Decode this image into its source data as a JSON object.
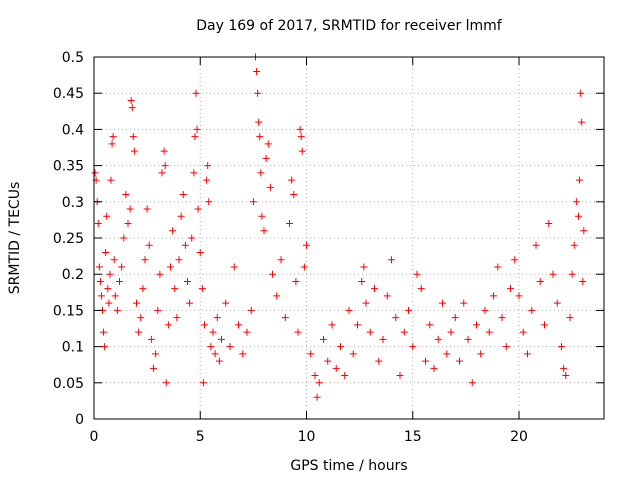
{
  "chart_data": {
    "type": "scatter",
    "title": "Day 169 of 2017, SRMTID for receiver lmmf",
    "xlabel": "GPS time / hours",
    "ylabel": "SRMTID / TECUs",
    "xlim": [
      0,
      24
    ],
    "ylim": [
      0,
      0.5
    ],
    "x_ticks": [
      0,
      5,
      10,
      15,
      20
    ],
    "x_tick_labels": [
      "0",
      "5",
      "10",
      "15",
      "20"
    ],
    "y_ticks": [
      0,
      0.05,
      0.1,
      0.15,
      0.2,
      0.25,
      0.3,
      0.35,
      0.4,
      0.45,
      0.5
    ],
    "y_tick_labels": [
      "0",
      "0.05",
      "0.1",
      "0.15",
      "0.2",
      "0.25",
      "0.3",
      "0.35",
      "0.4",
      "0.45",
      "0.5"
    ],
    "grid": true,
    "marker": "+",
    "series": [
      {
        "name": "SRMTID",
        "color": "#ff0000",
        "points": [
          [
            0.05,
            0.34
          ],
          [
            0.1,
            0.33
          ],
          [
            0.15,
            0.3
          ],
          [
            0.2,
            0.27
          ],
          [
            0.25,
            0.21
          ],
          [
            0.3,
            0.19
          ],
          [
            0.35,
            0.17
          ],
          [
            0.4,
            0.15
          ],
          [
            0.45,
            0.12
          ],
          [
            0.5,
            0.1
          ],
          [
            0.55,
            0.23
          ],
          [
            0.6,
            0.28
          ],
          [
            0.65,
            0.18
          ],
          [
            0.7,
            0.16
          ],
          [
            0.75,
            0.2
          ],
          [
            0.8,
            0.33
          ],
          [
            0.85,
            0.38
          ],
          [
            0.9,
            0.39
          ],
          [
            0.95,
            0.22
          ],
          [
            1.0,
            0.17
          ],
          [
            1.1,
            0.15
          ],
          [
            1.2,
            0.19
          ],
          [
            1.3,
            0.21
          ],
          [
            1.4,
            0.25
          ],
          [
            1.5,
            0.31
          ],
          [
            1.6,
            0.27
          ],
          [
            1.7,
            0.29
          ],
          [
            1.75,
            0.44
          ],
          [
            1.8,
            0.43
          ],
          [
            1.85,
            0.39
          ],
          [
            1.9,
            0.37
          ],
          [
            2.0,
            0.16
          ],
          [
            2.1,
            0.12
          ],
          [
            2.2,
            0.14
          ],
          [
            2.3,
            0.18
          ],
          [
            2.4,
            0.22
          ],
          [
            2.5,
            0.29
          ],
          [
            2.6,
            0.24
          ],
          [
            2.7,
            0.11
          ],
          [
            2.8,
            0.07
          ],
          [
            2.9,
            0.09
          ],
          [
            3.0,
            0.15
          ],
          [
            3.1,
            0.2
          ],
          [
            3.2,
            0.34
          ],
          [
            3.3,
            0.37
          ],
          [
            3.35,
            0.35
          ],
          [
            3.4,
            0.05
          ],
          [
            3.5,
            0.13
          ],
          [
            3.6,
            0.21
          ],
          [
            3.7,
            0.26
          ],
          [
            3.8,
            0.18
          ],
          [
            3.9,
            0.14
          ],
          [
            4.0,
            0.22
          ],
          [
            4.1,
            0.28
          ],
          [
            4.2,
            0.31
          ],
          [
            4.3,
            0.24
          ],
          [
            4.4,
            0.19
          ],
          [
            4.5,
            0.16
          ],
          [
            4.6,
            0.25
          ],
          [
            4.7,
            0.34
          ],
          [
            4.75,
            0.39
          ],
          [
            4.8,
            0.45
          ],
          [
            4.85,
            0.4
          ],
          [
            4.9,
            0.29
          ],
          [
            5.0,
            0.23
          ],
          [
            5.1,
            0.18
          ],
          [
            5.15,
            0.05
          ],
          [
            5.2,
            0.13
          ],
          [
            5.3,
            0.33
          ],
          [
            5.35,
            0.35
          ],
          [
            5.4,
            0.3
          ],
          [
            5.5,
            0.1
          ],
          [
            5.6,
            0.12
          ],
          [
            5.7,
            0.09
          ],
          [
            5.8,
            0.14
          ],
          [
            5.9,
            0.08
          ],
          [
            6.0,
            0.11
          ],
          [
            6.2,
            0.16
          ],
          [
            6.4,
            0.1
          ],
          [
            6.6,
            0.21
          ],
          [
            6.8,
            0.13
          ],
          [
            7.0,
            0.09
          ],
          [
            7.2,
            0.12
          ],
          [
            7.4,
            0.15
          ],
          [
            7.5,
            0.3
          ],
          [
            7.6,
            0.5
          ],
          [
            7.65,
            0.48
          ],
          [
            7.7,
            0.45
          ],
          [
            7.75,
            0.41
          ],
          [
            7.8,
            0.39
          ],
          [
            7.85,
            0.34
          ],
          [
            7.9,
            0.28
          ],
          [
            8.0,
            0.26
          ],
          [
            8.1,
            0.36
          ],
          [
            8.2,
            0.38
          ],
          [
            8.3,
            0.32
          ],
          [
            8.4,
            0.2
          ],
          [
            8.6,
            0.17
          ],
          [
            8.8,
            0.22
          ],
          [
            9.0,
            0.14
          ],
          [
            9.2,
            0.27
          ],
          [
            9.3,
            0.33
          ],
          [
            9.4,
            0.31
          ],
          [
            9.5,
            0.19
          ],
          [
            9.6,
            0.12
          ],
          [
            9.7,
            0.4
          ],
          [
            9.75,
            0.39
          ],
          [
            9.8,
            0.37
          ],
          [
            9.9,
            0.21
          ],
          [
            10.0,
            0.24
          ],
          [
            10.2,
            0.09
          ],
          [
            10.4,
            0.06
          ],
          [
            10.5,
            0.03
          ],
          [
            10.6,
            0.05
          ],
          [
            10.8,
            0.11
          ],
          [
            11.0,
            0.08
          ],
          [
            11.2,
            0.13
          ],
          [
            11.4,
            0.07
          ],
          [
            11.6,
            0.1
          ],
          [
            11.8,
            0.06
          ],
          [
            12.0,
            0.15
          ],
          [
            12.2,
            0.09
          ],
          [
            12.4,
            0.13
          ],
          [
            12.6,
            0.19
          ],
          [
            12.7,
            0.21
          ],
          [
            12.8,
            0.16
          ],
          [
            13.0,
            0.12
          ],
          [
            13.2,
            0.18
          ],
          [
            13.4,
            0.08
          ],
          [
            13.6,
            0.11
          ],
          [
            13.8,
            0.17
          ],
          [
            14.0,
            0.22
          ],
          [
            14.2,
            0.14
          ],
          [
            14.4,
            0.06
          ],
          [
            14.6,
            0.12
          ],
          [
            14.8,
            0.15
          ],
          [
            15.0,
            0.1
          ],
          [
            15.2,
            0.2
          ],
          [
            15.4,
            0.18
          ],
          [
            15.6,
            0.08
          ],
          [
            15.8,
            0.13
          ],
          [
            16.0,
            0.07
          ],
          [
            16.2,
            0.11
          ],
          [
            16.4,
            0.16
          ],
          [
            16.6,
            0.09
          ],
          [
            16.8,
            0.12
          ],
          [
            17.0,
            0.14
          ],
          [
            17.2,
            0.08
          ],
          [
            17.4,
            0.16
          ],
          [
            17.6,
            0.11
          ],
          [
            17.8,
            0.05
          ],
          [
            18.0,
            0.13
          ],
          [
            18.2,
            0.09
          ],
          [
            18.4,
            0.15
          ],
          [
            18.6,
            0.12
          ],
          [
            18.8,
            0.17
          ],
          [
            19.0,
            0.21
          ],
          [
            19.2,
            0.14
          ],
          [
            19.4,
            0.1
          ],
          [
            19.6,
            0.18
          ],
          [
            19.8,
            0.22
          ],
          [
            20.0,
            0.17
          ],
          [
            20.2,
            0.12
          ],
          [
            20.4,
            0.09
          ],
          [
            20.6,
            0.15
          ],
          [
            20.8,
            0.24
          ],
          [
            21.0,
            0.19
          ],
          [
            21.2,
            0.13
          ],
          [
            21.4,
            0.27
          ],
          [
            21.6,
            0.2
          ],
          [
            21.8,
            0.16
          ],
          [
            22.0,
            0.1
          ],
          [
            22.1,
            0.07
          ],
          [
            22.2,
            0.06
          ],
          [
            22.4,
            0.14
          ],
          [
            22.5,
            0.2
          ],
          [
            22.6,
            0.24
          ],
          [
            22.7,
            0.3
          ],
          [
            22.8,
            0.28
          ],
          [
            22.85,
            0.33
          ],
          [
            22.9,
            0.45
          ],
          [
            22.95,
            0.41
          ],
          [
            23.0,
            0.19
          ],
          [
            23.05,
            0.26
          ]
        ]
      }
    ]
  }
}
